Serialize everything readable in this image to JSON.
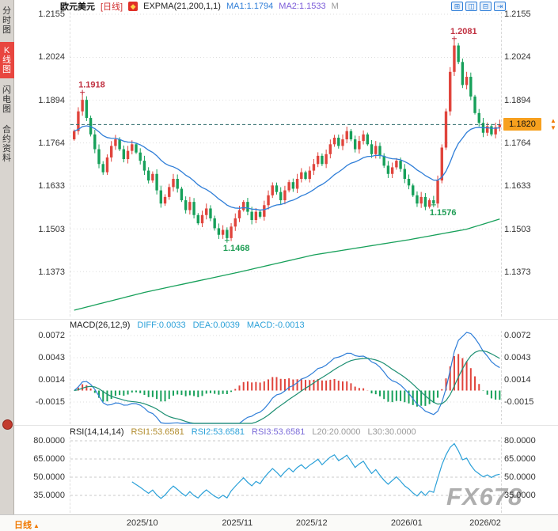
{
  "header": {
    "symbol": "欧元美元",
    "period_tag": "[日线]",
    "indicator_label": "EXPMA(21,200,1,1)",
    "ma1_label": "MA1:1.1794",
    "ma2_label": "MA2:1.1533",
    "m_label": "M"
  },
  "sidebar": {
    "tabs": [
      {
        "label": "分时图",
        "active": false
      },
      {
        "label": "K线图",
        "active": true
      },
      {
        "label": "闪电图",
        "active": false
      },
      {
        "label": "合约资料",
        "active": false
      }
    ]
  },
  "icons": {
    "logo_glyph": "◆",
    "window_controls": [
      {
        "name": "layout-grid-icon",
        "glyph": "⊞"
      },
      {
        "name": "layout-columns-icon",
        "glyph": "◫"
      },
      {
        "name": "layout-rows-icon",
        "glyph": "⊟"
      },
      {
        "name": "collapse-panel-icon",
        "glyph": "⇥"
      }
    ],
    "alert_up_glyph": "▲",
    "alert_down_glyph": "▼",
    "period_chevron_glyph": "▲"
  },
  "macd_panel": {
    "title": "MACD(26,12,9)",
    "diff_label": "DIFF:0.0033",
    "dea_label": "DEA:0.0039",
    "macd_label": "MACD:-0.0013"
  },
  "rsi_panel": {
    "title": "RSI(14,14,14)",
    "rsi1_label": "RSI1:53.6581",
    "rsi2_label": "RSI2:53.6581",
    "rsi3_label": "RSI3:53.6581",
    "l20_label": "L20:20.0000",
    "l30_label": "L30:30.0000"
  },
  "bottom_axis": {
    "period_label": "日线"
  },
  "watermark": "FX678",
  "colors": {
    "up": "#e0443c",
    "down": "#17a05a",
    "ma1": "#2f7ed8",
    "ma2": "#17a05a",
    "diff_line": "#2f7ed8",
    "dea_line": "#1d8f72",
    "rsi_line": "#2aa0d8",
    "grid": "#dddddd",
    "dashed_price_line": "#2e6b6b",
    "tag_bg": "#f7a01e",
    "accent_orange": "#f07800",
    "annotation_high": "#c03040",
    "annotation_low": "#1f9d55"
  },
  "chart_data": [
    {
      "type": "candlestick",
      "title": "欧元美元 日线 (EUR/USD Daily)",
      "price_axis": [
        1.2155,
        1.2024,
        1.1894,
        1.1764,
        1.1633,
        1.1503,
        1.1373
      ],
      "current_price": 1.182,
      "first_open": 1.1775,
      "closes": [
        1.18,
        1.186,
        1.1895,
        1.184,
        1.179,
        1.1745,
        1.17,
        1.1675,
        1.172,
        1.1755,
        1.1775,
        1.1745,
        1.1715,
        1.174,
        1.176,
        1.1735,
        1.171,
        1.168,
        1.165,
        1.167,
        1.162,
        1.158,
        1.16,
        1.163,
        1.1655,
        1.1625,
        1.159,
        1.156,
        1.1585,
        1.1545,
        1.152,
        1.1545,
        1.1565,
        1.1535,
        1.1505,
        1.1485,
        1.15,
        1.1475,
        1.151,
        1.1535,
        1.156,
        1.1585,
        1.1555,
        1.153,
        1.1555,
        1.154,
        1.1575,
        1.1605,
        1.1635,
        1.1615,
        1.159,
        1.162,
        1.1645,
        1.1625,
        1.1655,
        1.1675,
        1.1655,
        1.168,
        1.17,
        1.1725,
        1.17,
        1.173,
        1.176,
        1.178,
        1.1755,
        1.1775,
        1.18,
        1.1775,
        1.1745,
        1.177,
        1.179,
        1.176,
        1.173,
        1.1755,
        1.1725,
        1.1695,
        1.167,
        1.169,
        1.171,
        1.1685,
        1.1655,
        1.1635,
        1.1605,
        1.158,
        1.16,
        1.157,
        1.159,
        1.158,
        1.165,
        1.175,
        1.186,
        1.198,
        1.206,
        1.201,
        1.194,
        1.1965,
        1.1905,
        1.1855,
        1.1825,
        1.1795,
        1.1815,
        1.179,
        1.1812,
        1.182
      ],
      "wick_overrides": {
        "2": {
          "high": 1.1918
        },
        "37": {
          "low": 1.1468
        },
        "87": {
          "low": 1.1576
        },
        "92": {
          "high": 1.2081
        }
      },
      "annotations": [
        {
          "text": "1.1918",
          "index": 2,
          "price": 1.1918,
          "side": "above",
          "kind": "high"
        },
        {
          "text": "1.2081",
          "index": 92,
          "price": 1.2081,
          "side": "above",
          "kind": "high"
        },
        {
          "text": "1.1468",
          "index": 37,
          "price": 1.1468,
          "side": "below",
          "kind": "low"
        },
        {
          "text": "1.1576",
          "index": 87,
          "price": 1.1576,
          "side": "below",
          "kind": "low"
        }
      ],
      "x_ticks": [
        {
          "label": "2025/10",
          "index": 17
        },
        {
          "label": "2025/11",
          "index": 40
        },
        {
          "label": "2025/12",
          "index": 58
        },
        {
          "label": "2026/01",
          "index": 81
        },
        {
          "label": "2026/02",
          "index": 100
        }
      ],
      "ma1": {
        "name": "EXPMA21",
        "period": 21,
        "last": 1.1794
      },
      "ma2": {
        "name": "EXPMA200",
        "last": 1.1533,
        "anchors": [
          [
            0,
            1.1256
          ],
          [
            17,
            1.131
          ],
          [
            40,
            1.1372
          ],
          [
            58,
            1.1424
          ],
          [
            81,
            1.147
          ],
          [
            95,
            1.1502
          ],
          [
            103,
            1.1533
          ]
        ]
      }
    },
    {
      "type": "macd",
      "params": [
        26,
        12,
        9
      ],
      "diff": 0.0033,
      "dea": 0.0039,
      "macd": -0.0013,
      "axis": [
        0.0072,
        0.0043,
        0.0014,
        -0.0015
      ]
    },
    {
      "type": "rsi",
      "params": [
        14,
        14,
        14
      ],
      "rsi1": 53.6581,
      "rsi2": 53.6581,
      "rsi3": 53.6581,
      "l20": 20.0,
      "l30": 30.0,
      "axis": [
        80,
        65,
        50,
        35
      ]
    }
  ]
}
